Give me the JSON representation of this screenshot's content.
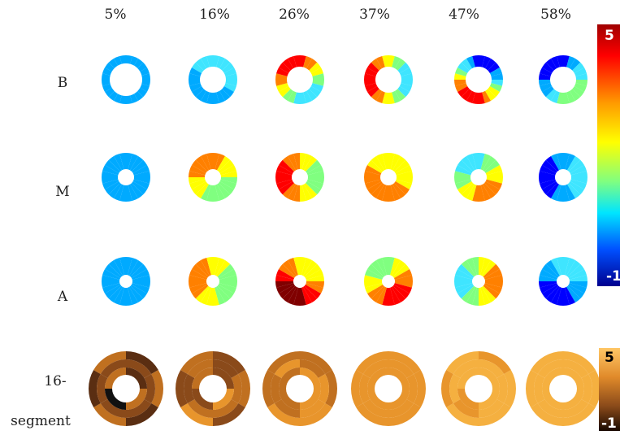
{
  "columns": [
    "5%",
    "16%",
    "26%",
    "37%",
    "47%",
    "58%"
  ],
  "rows": [
    "B",
    "M",
    "A"
  ],
  "segment_row_label": [
    "16-",
    "segment"
  ],
  "jet_colorbar": {
    "max": "5",
    "min": "-1",
    "max_color": "#ffffff",
    "min_color": "#ffffff"
  },
  "copper_colorbar": {
    "max": "5",
    "min": "-1"
  },
  "colors": {
    "jet": [
      "#00008f",
      "#0000ff",
      "#00aaff",
      "#3fe5ff",
      "#80ff80",
      "#ffff00",
      "#ff8000",
      "#ff0000",
      "#800000"
    ],
    "copper": [
      "#000000",
      "#5a2e12",
      "#8a4a1a",
      "#c07020",
      "#e8952c",
      "#f5b040",
      "#ffc766"
    ]
  }
}
